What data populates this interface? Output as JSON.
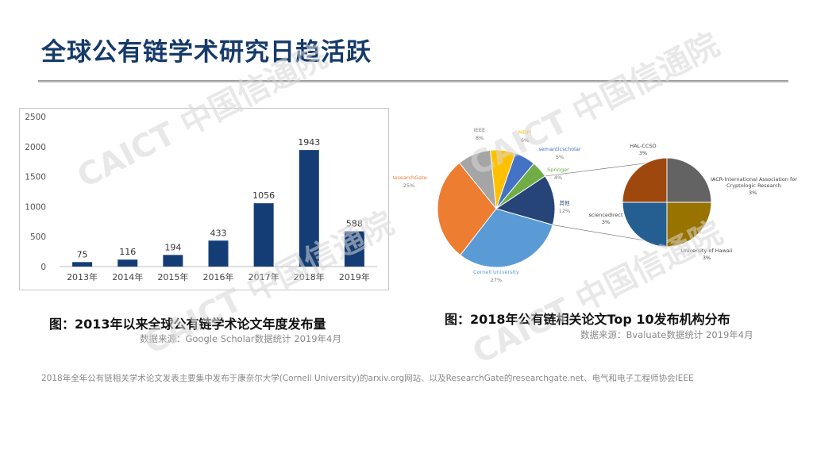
{
  "slide": {
    "title": "全球公有链学术研究日趋活跃",
    "caption_left": "图：2013年以来全球公有链学术论文年度发布量",
    "source_left": "数据来源：Google Scholar数据统计 2019年4月",
    "caption_right": "图：2018年公有链相关论文Top  10发布机构分布",
    "source_right": "数据来源：Bvaluate数据统计 2019年4月",
    "note": "2018年全年公有链相关学术论文发表主要集中发布于康奈尔大学(Cornell University)的arxiv.org网站、以及ResearchGate的researchgate.net、电气和电子工程师协会IEEE",
    "watermark": "CAICT 中国信通院"
  },
  "colors": {
    "bar": "#153d75",
    "title": "#163a6a"
  },
  "chart_data": [
    {
      "type": "bar",
      "categories": [
        "2013年",
        "2014年",
        "2015年",
        "2016年",
        "2017年",
        "2018年",
        "2019年"
      ],
      "values": [
        75,
        116,
        194,
        433,
        1056,
        1943,
        588
      ],
      "yticks": [
        0,
        500,
        1000,
        1500,
        2000,
        2500
      ],
      "ylim": [
        0,
        2500
      ],
      "grid": false,
      "title": "",
      "xlabel": "",
      "ylabel": ""
    },
    {
      "type": "pie",
      "slices": [
        {
          "label": "Cornell University",
          "value": 27,
          "display": "27%",
          "color": "#5b9bd5"
        },
        {
          "label": "ResearchGate",
          "value": 25,
          "display": "25%",
          "color": "#ed7d31"
        },
        {
          "label": "IEEE",
          "value": 8,
          "display": "8%",
          "color": "#a5a5a5"
        },
        {
          "label": "MDPI",
          "value": 6,
          "display": "6%",
          "color": "#ffc000"
        },
        {
          "label": "semanticscholar",
          "value": 5,
          "display": "5%",
          "color": "#4472c4"
        },
        {
          "label": "Springer",
          "value": 4,
          "display": "4%",
          "color": "#70ad47"
        },
        {
          "label": "其他",
          "value": 12,
          "display": "12%",
          "color": "#264478"
        }
      ],
      "breakout": {
        "parent": "其他",
        "slices": [
          {
            "label": "HAL-CCSD",
            "value": 3,
            "display": "3%",
            "color": "#636363"
          },
          {
            "label": "IACR-International Association for",
            "label2": "Cryptologic Research",
            "value": 3,
            "display": "3%",
            "color": "#997300"
          },
          {
            "label": "University of Hawaii",
            "value": 3,
            "display": "3%",
            "color": "#255e91"
          },
          {
            "label": "sciencedirect",
            "value": 3,
            "display": "3%",
            "color": "#9e480e"
          }
        ]
      }
    }
  ]
}
